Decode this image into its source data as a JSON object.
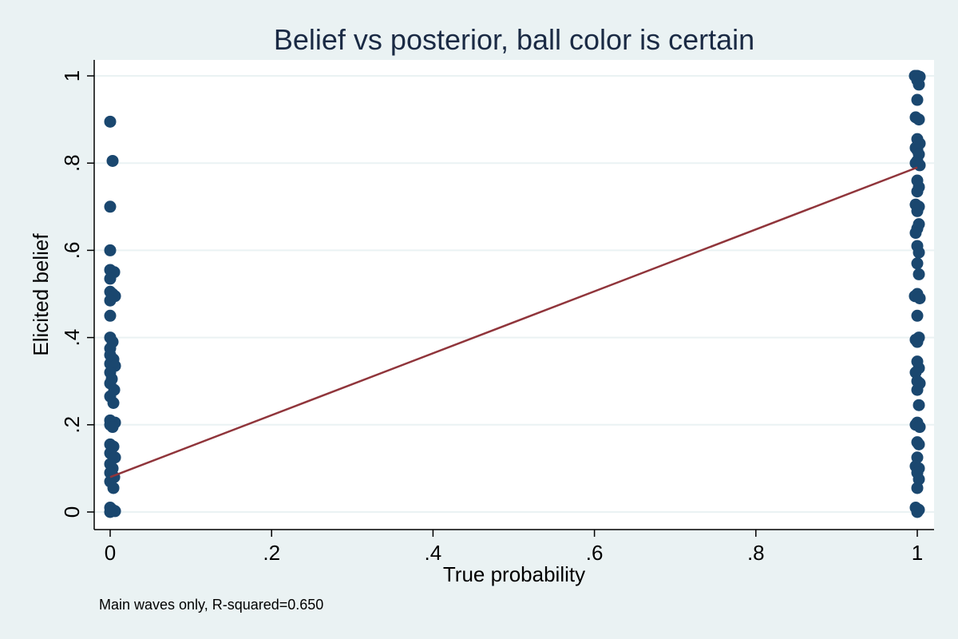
{
  "chart_data": {
    "type": "scatter",
    "title": "Belief vs posterior, ball color is certain",
    "xlabel": "True probability",
    "ylabel": "Elicited belief",
    "note": "Main waves only, R-squared=0.650",
    "xlim": [
      0,
      1
    ],
    "ylim": [
      0,
      1
    ],
    "xticks": [
      {
        "value": 0,
        "label": "0"
      },
      {
        "value": 0.2,
        "label": ".2"
      },
      {
        "value": 0.4,
        "label": ".4"
      },
      {
        "value": 0.6,
        "label": ".6"
      },
      {
        "value": 0.8,
        "label": ".8"
      },
      {
        "value": 1,
        "label": "1"
      }
    ],
    "yticks": [
      {
        "value": 0,
        "label": "0"
      },
      {
        "value": 0.2,
        "label": ".2"
      },
      {
        "value": 0.4,
        "label": ".4"
      },
      {
        "value": 0.6,
        "label": ".6"
      },
      {
        "value": 0.8,
        "label": ".8"
      },
      {
        "value": 1,
        "label": "1"
      }
    ],
    "grid": true,
    "colors": {
      "background": "#eaf2f3",
      "plot": "#ffffff",
      "marker": "#1a476f",
      "fit_line": "#90353b",
      "grid": "#eaf2f3"
    },
    "series": [
      {
        "kind": "scatter",
        "points": [
          [
            0,
            0.895
          ],
          [
            0.003,
            0.805
          ],
          [
            0,
            0.7
          ],
          [
            0,
            0.6
          ],
          [
            0,
            0.555
          ],
          [
            0.005,
            0.55
          ],
          [
            0,
            0.535
          ],
          [
            0,
            0.505
          ],
          [
            0.003,
            0.5
          ],
          [
            0.006,
            0.495
          ],
          [
            0,
            0.485
          ],
          [
            0,
            0.45
          ],
          [
            0,
            0.4
          ],
          [
            0.003,
            0.39
          ],
          [
            0,
            0.375
          ],
          [
            0,
            0.36
          ],
          [
            0.004,
            0.35
          ],
          [
            0,
            0.34
          ],
          [
            0.006,
            0.335
          ],
          [
            0,
            0.32
          ],
          [
            0.002,
            0.305
          ],
          [
            0,
            0.295
          ],
          [
            0.005,
            0.28
          ],
          [
            0,
            0.265
          ],
          [
            0.004,
            0.25
          ],
          [
            0,
            0.21
          ],
          [
            0.006,
            0.205
          ],
          [
            0,
            0.2
          ],
          [
            0.003,
            0.195
          ],
          [
            0,
            0.155
          ],
          [
            0.004,
            0.15
          ],
          [
            0,
            0.135
          ],
          [
            0.006,
            0.125
          ],
          [
            0,
            0.11
          ],
          [
            0.003,
            0.1
          ],
          [
            0,
            0.09
          ],
          [
            0.005,
            0.08
          ],
          [
            0,
            0.07
          ],
          [
            0.004,
            0.055
          ],
          [
            0,
            0.01
          ],
          [
            0.003,
            0.005
          ],
          [
            0.006,
            0.002
          ],
          [
            0,
            0
          ],
          [
            0.997,
            1
          ],
          [
            1,
            1
          ],
          [
            1.003,
            0.998
          ],
          [
            1,
            0.99
          ],
          [
            1.002,
            0.98
          ],
          [
            1,
            0.945
          ],
          [
            0.998,
            0.905
          ],
          [
            1.002,
            0.9
          ],
          [
            1,
            0.855
          ],
          [
            1.003,
            0.845
          ],
          [
            0.998,
            0.835
          ],
          [
            1,
            0.83
          ],
          [
            1.002,
            0.82
          ],
          [
            1,
            0.805
          ],
          [
            0.998,
            0.8
          ],
          [
            1.003,
            0.795
          ],
          [
            1,
            0.76
          ],
          [
            1.002,
            0.745
          ],
          [
            1,
            0.735
          ],
          [
            0.998,
            0.705
          ],
          [
            1.002,
            0.7
          ],
          [
            1,
            0.69
          ],
          [
            1.002,
            0.66
          ],
          [
            1,
            0.65
          ],
          [
            0.998,
            0.64
          ],
          [
            1,
            0.61
          ],
          [
            1.002,
            0.595
          ],
          [
            1,
            0.57
          ],
          [
            1.002,
            0.545
          ],
          [
            1,
            0.5
          ],
          [
            0.997,
            0.495
          ],
          [
            1.003,
            0.49
          ],
          [
            1,
            0.45
          ],
          [
            1.002,
            0.4
          ],
          [
            0.998,
            0.395
          ],
          [
            1,
            0.39
          ],
          [
            1,
            0.345
          ],
          [
            1.002,
            0.33
          ],
          [
            0.998,
            0.32
          ],
          [
            1,
            0.3
          ],
          [
            1.003,
            0.295
          ],
          [
            1,
            0.28
          ],
          [
            1.002,
            0.245
          ],
          [
            1,
            0.205
          ],
          [
            0.998,
            0.2
          ],
          [
            1.003,
            0.195
          ],
          [
            1,
            0.16
          ],
          [
            1.002,
            0.155
          ],
          [
            1,
            0.125
          ],
          [
            0.998,
            0.105
          ],
          [
            1.002,
            0.1
          ],
          [
            1,
            0.09
          ],
          [
            1.002,
            0.075
          ],
          [
            1,
            0.055
          ],
          [
            0.998,
            0.01
          ],
          [
            1.002,
            0.005
          ],
          [
            1,
            0
          ]
        ]
      },
      {
        "kind": "line",
        "points": [
          [
            0,
            0.08
          ],
          [
            1,
            0.79
          ]
        ]
      }
    ]
  }
}
